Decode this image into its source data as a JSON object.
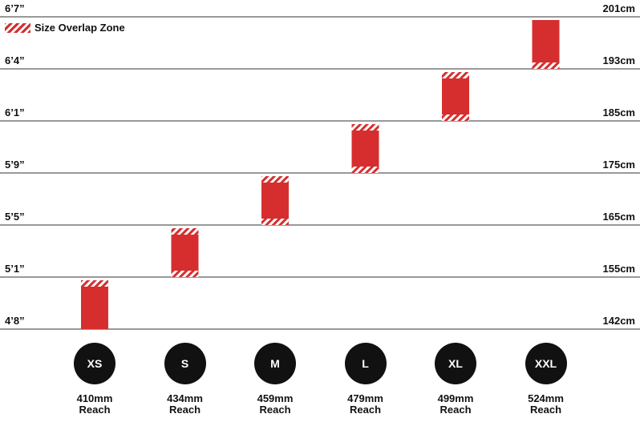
{
  "legend": {
    "label": "Size Overlap Zone"
  },
  "colors": {
    "bar": "#d62e2e",
    "gridline": "#333333",
    "badge": "#111111"
  },
  "chart_data": {
    "type": "bar",
    "subtype": "floating-range",
    "rows": [
      {
        "imperial": "4’8”",
        "metric": "142cm"
      },
      {
        "imperial": "5’1”",
        "metric": "155cm"
      },
      {
        "imperial": "5’5”",
        "metric": "165cm"
      },
      {
        "imperial": "5’9”",
        "metric": "175cm"
      },
      {
        "imperial": "6’1”",
        "metric": "185cm"
      },
      {
        "imperial": "6’4”",
        "metric": "193cm"
      },
      {
        "imperial": "6’7”",
        "metric": "201cm"
      }
    ],
    "categories": [
      "XS",
      "S",
      "M",
      "L",
      "XL",
      "XXL"
    ],
    "reach": [
      "410mm",
      "434mm",
      "459mm",
      "479mm",
      "499mm",
      "524mm"
    ],
    "reach_label": "Reach",
    "ranges": [
      {
        "size": "XS",
        "from": 0,
        "to": 1,
        "overlap_low": false,
        "overlap_high": true
      },
      {
        "size": "S",
        "from": 1,
        "to": 2,
        "overlap_low": true,
        "overlap_high": true
      },
      {
        "size": "M",
        "from": 2,
        "to": 3,
        "overlap_low": true,
        "overlap_high": true
      },
      {
        "size": "L",
        "from": 3,
        "to": 4,
        "overlap_low": true,
        "overlap_high": true
      },
      {
        "size": "XL",
        "from": 4,
        "to": 5,
        "overlap_low": true,
        "overlap_high": true
      },
      {
        "size": "XXL",
        "from": 5,
        "to": 6,
        "overlap_low": true,
        "overlap_high": false
      }
    ],
    "legend_position": "top-left"
  }
}
